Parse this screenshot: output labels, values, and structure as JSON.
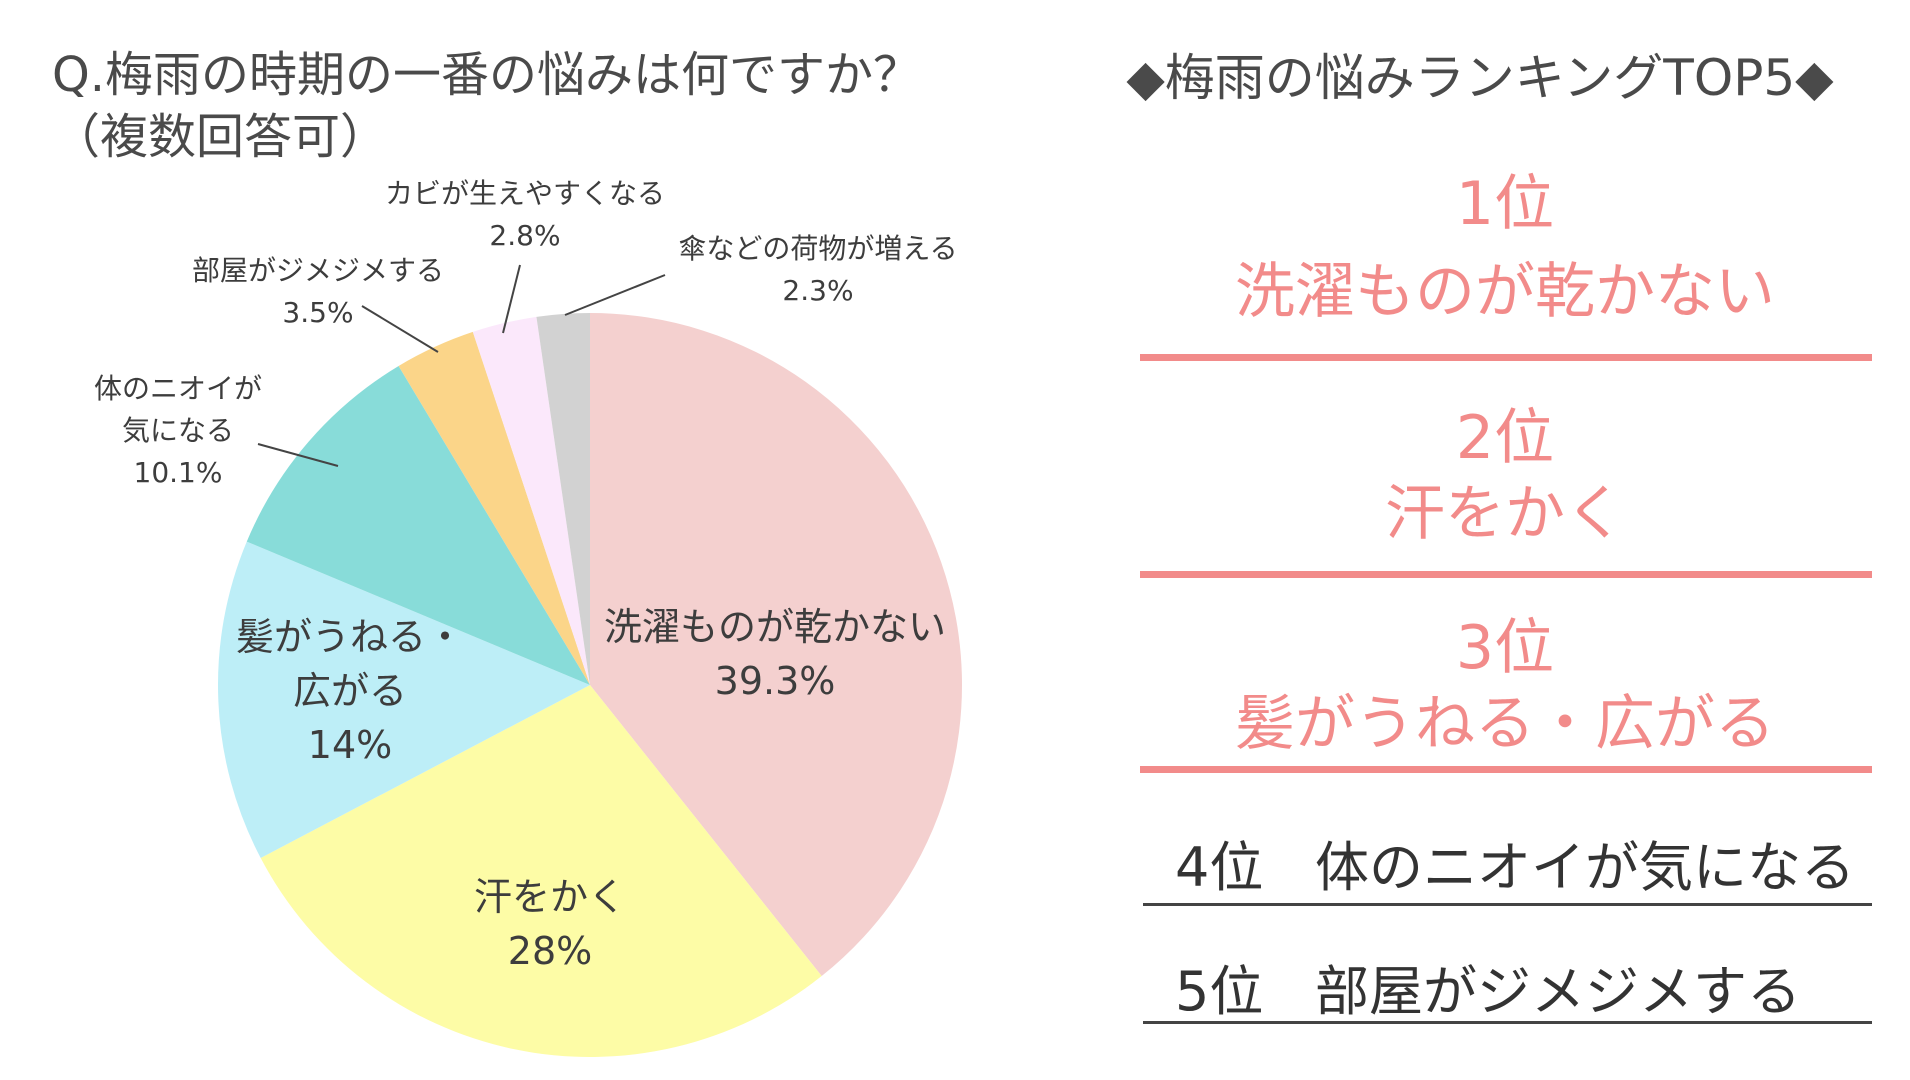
{
  "question": {
    "line1": "Q.梅雨の時期の一番の悩みは何ですか？",
    "line2": "（複数回答可）"
  },
  "ranking": {
    "title": "◆梅雨の悩みランキングTOP5◆",
    "items": [
      {
        "rank": "1位",
        "label": "洗濯ものが乾かない"
      },
      {
        "rank": "2位",
        "label": "汗をかく"
      },
      {
        "rank": "3位",
        "label": "髪がうねる・広がる"
      },
      {
        "rank": "4位",
        "label": "体のニオイが気になる"
      },
      {
        "rank": "5位",
        "label": "部屋がジメジメする"
      }
    ],
    "accent_color": "#f28b8a",
    "rule_color": "#444444"
  },
  "chart_data": {
    "type": "pie",
    "title": "Q.梅雨の時期の一番の悩みは何ですか？（複数回答可）",
    "slices": [
      {
        "label": "洗濯ものが乾かない",
        "value": 39.3,
        "value_label": "39.3%",
        "color": "#f4d0cf"
      },
      {
        "label": "汗をかく",
        "value": 28,
        "value_label": "28%",
        "color": "#fdfca6"
      },
      {
        "label": "髪がうねる・広がる",
        "value": 14,
        "value_label": "14%",
        "color": "#bdeef7"
      },
      {
        "label": "体のニオイが気になる",
        "value": 10.1,
        "value_label": "10.1%",
        "color": "#88dcd9"
      },
      {
        "label": "部屋がジメジメする",
        "value": 3.5,
        "value_label": "3.5%",
        "color": "#fbd589"
      },
      {
        "label": "カビが生えやすくなる",
        "value": 2.8,
        "value_label": "2.8%",
        "color": "#fbe8fb"
      },
      {
        "label": "傘などの荷物が増える",
        "value": 2.3,
        "value_label": "2.3%",
        "color": "#d2d2d2"
      }
    ],
    "start": "12 o'clock",
    "direction": "clockwise"
  }
}
